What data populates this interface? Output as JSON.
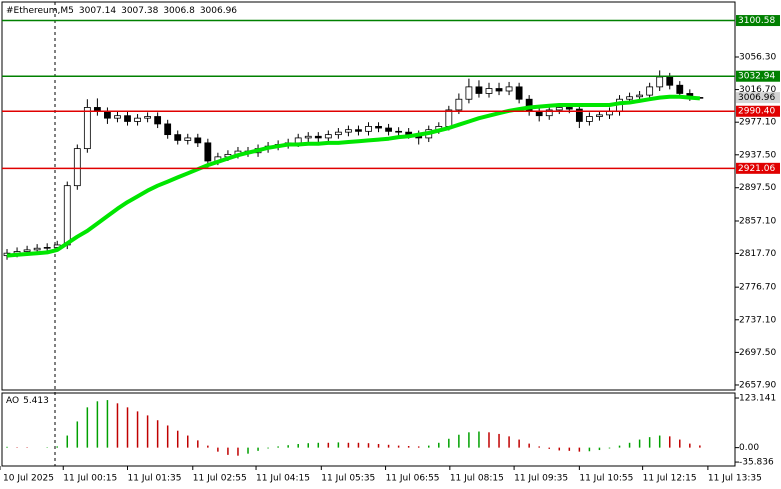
{
  "chart_data": [
    {
      "type": "candlestick",
      "title": "#Ethereum,M5",
      "open": [
        2815,
        2818,
        2820,
        2822,
        2824,
        2825,
        2828,
        2900,
        2945,
        2995,
        2990,
        2982,
        2985,
        2978,
        2982,
        2984,
        2975,
        2962,
        2955,
        2958,
        2952,
        2930,
        2935,
        2938,
        2942,
        2940,
        2945,
        2948,
        2950,
        2952,
        2958,
        2960,
        2958,
        2962,
        2965,
        2968,
        2966,
        2972,
        2970,
        2966,
        2965,
        2962,
        2958,
        2968,
        2972,
        2992,
        3005,
        3020,
        3012,
        3018,
        3015,
        3020,
        3005,
        2990,
        2985,
        2992,
        2995,
        2993,
        2978,
        2984,
        2986,
        2990,
        3005,
        3008,
        3010,
        3020,
        3032,
        3022,
        3012,
        3007.14
      ],
      "high": [
        2823,
        2825,
        2827,
        2829,
        2830,
        2833,
        2905,
        2950,
        3005,
        3006,
        2995,
        2990,
        2990,
        2987,
        2989,
        2989,
        2980,
        2967,
        2963,
        2963,
        2957,
        2940,
        2943,
        2947,
        2947,
        2950,
        2953,
        2955,
        2957,
        2963,
        2965,
        2965,
        2967,
        2970,
        2973,
        2973,
        2977,
        2977,
        2975,
        2971,
        2970,
        2967,
        2973,
        2977,
        2997,
        3012,
        3030,
        3028,
        3025,
        3025,
        3026,
        3025,
        3010,
        2995,
        2997,
        3000,
        3000,
        2998,
        2989,
        2991,
        2995,
        3010,
        3013,
        3015,
        3025,
        3040,
        3037,
        3027,
        3017,
        3007.38
      ],
      "low": [
        2810,
        2813,
        2815,
        2817,
        2819,
        2820,
        2823,
        2895,
        2940,
        2985,
        2975,
        2977,
        2973,
        2973,
        2977,
        2970,
        2957,
        2950,
        2950,
        2947,
        2922,
        2925,
        2930,
        2933,
        2935,
        2935,
        2940,
        2943,
        2945,
        2947,
        2953,
        2953,
        2953,
        2957,
        2960,
        2961,
        2961,
        2965,
        2961,
        2960,
        2957,
        2950,
        2953,
        2963,
        2967,
        2987,
        3000,
        3007,
        3007,
        3010,
        3010,
        3000,
        2985,
        2978,
        2980,
        2987,
        2988,
        2970,
        2973,
        2979,
        2981,
        2985,
        3000,
        3003,
        3005,
        3015,
        3017,
        3007,
        3003,
        3006.8
      ],
      "close": [
        2818,
        2820,
        2822,
        2824,
        2825,
        2828,
        2900,
        2945,
        2995,
        2990,
        2982,
        2985,
        2978,
        2982,
        2984,
        2975,
        2962,
        2955,
        2958,
        2952,
        2930,
        2935,
        2938,
        2942,
        2940,
        2945,
        2948,
        2950,
        2952,
        2958,
        2960,
        2958,
        2962,
        2965,
        2968,
        2966,
        2972,
        2970,
        2966,
        2965,
        2962,
        2958,
        2968,
        2972,
        2992,
        3005,
        3020,
        3012,
        3018,
        3015,
        3020,
        3005,
        2990,
        2985,
        2992,
        2995,
        2993,
        2978,
        2984,
        2986,
        2990,
        3005,
        3008,
        3010,
        3020,
        3032,
        3022,
        3012,
        3008,
        3006.96
      ],
      "candle_up": "#ffffff",
      "candle_down": "#000000",
      "ma": {
        "color": "#00e600",
        "values": [
          2815,
          2816,
          2817,
          2818,
          2819,
          2822,
          2830,
          2838,
          2845,
          2854,
          2863,
          2872,
          2880,
          2887,
          2894,
          2900,
          2905,
          2910,
          2915,
          2920,
          2925,
          2929,
          2933,
          2937,
          2940,
          2943,
          2946,
          2948,
          2950,
          2950,
          2951,
          2951,
          2952,
          2952,
          2953,
          2954,
          2955,
          2956,
          2957,
          2959,
          2960,
          2962,
          2964,
          2967,
          2970,
          2974,
          2978,
          2982,
          2985,
          2988,
          2991,
          2993,
          2995,
          2996,
          2997,
          2998,
          2998,
          2998,
          2998,
          2998,
          2998,
          3000,
          3001,
          3003,
          3005,
          3007,
          3008,
          3008,
          3007,
          3006
        ]
      },
      "levels": [
        {
          "value": 3100.58,
          "color": "#008000"
        },
        {
          "value": 3032.94,
          "color": "#008000"
        },
        {
          "value": 2990.4,
          "label": "2990.40",
          "color": "#e00000"
        },
        {
          "value": 2921.06,
          "color": "#e00000"
        }
      ],
      "xlim": [
        -0.5,
        72.5
      ],
      "xticks": [
        {
          "value": -0.7,
          "label": "10 Jul 2025"
        },
        {
          "value": 5.6,
          "label": "11 Jul 00:15"
        },
        {
          "value": 12,
          "label": "11 Jul 01:35"
        },
        {
          "value": 18.5,
          "label": "11 Jul 02:55"
        },
        {
          "value": 24.8,
          "label": "11 Jul 04:15"
        },
        {
          "value": 31.3,
          "label": "11 Jul 05:35"
        },
        {
          "value": 37.7,
          "label": "11 Jul 06:55"
        },
        {
          "value": 44.1,
          "label": "11 Jul 08:15"
        },
        {
          "value": 50.5,
          "label": "11 Jul 09:35"
        },
        {
          "value": 57,
          "label": "11 Jul 10:55"
        },
        {
          "value": 63.3,
          "label": "11 Jul 12:15"
        },
        {
          "value": 69.8,
          "label": "11 Jul 13:35"
        }
      ],
      "ylim": [
        2651.8,
        3123.1
      ],
      "yticks": [
        {
          "value": 3056.3,
          "label": "3056.30"
        },
        {
          "value": 3016.7,
          "label": "3016.70"
        },
        {
          "value": 2977.1,
          "label": "2977.10"
        },
        {
          "value": 2937.5,
          "label": "2937.50"
        },
        {
          "value": 2897.5,
          "label": "2897.50"
        },
        {
          "value": 2857.1,
          "label": "2857.10"
        },
        {
          "value": 2817.7,
          "label": "2817.70"
        },
        {
          "value": 2776.7,
          "label": "2776.70"
        },
        {
          "value": 2737.1,
          "label": "2737.10"
        },
        {
          "value": 2697.5,
          "label": "2697.50"
        },
        {
          "value": 2657.9,
          "label": "2657.90"
        }
      ]
    },
    {
      "type": "bar",
      "title": "AO",
      "values": [
        2,
        1,
        1,
        0,
        1,
        3,
        30,
        65,
        100,
        115,
        118,
        110,
        100,
        90,
        80,
        68,
        55,
        42,
        30,
        18,
        5,
        -10,
        -18,
        -20,
        -15,
        -8,
        -2,
        3,
        6,
        9,
        11,
        12,
        12,
        13,
        12,
        12,
        11,
        9,
        7,
        5,
        4,
        3,
        5,
        12,
        22,
        32,
        38,
        40,
        38,
        34,
        28,
        20,
        10,
        3,
        -3,
        -7,
        -8,
        -10,
        -9,
        -6,
        -2,
        5,
        12,
        20,
        26,
        30,
        28,
        20,
        10,
        5.413
      ],
      "up_color": "#00a000",
      "down_color": "#c00000",
      "ylim": [
        -45.6,
        135.6
      ],
      "yticks": [
        123.141,
        {
          "value": 0,
          "label": "0.00"
        },
        -35.836
      ]
    }
  ]
}
